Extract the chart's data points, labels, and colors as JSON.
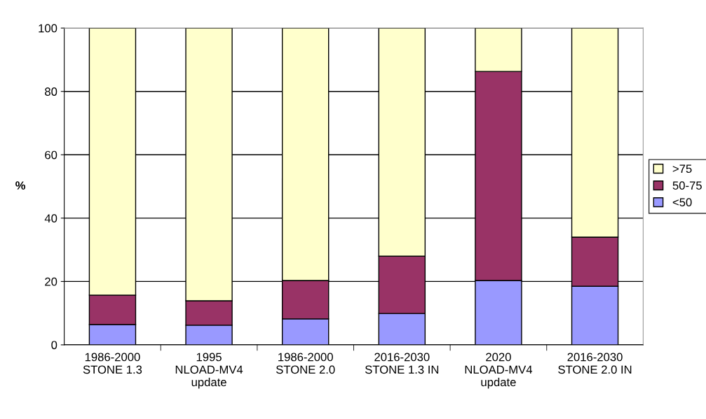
{
  "chart_data": {
    "type": "bar",
    "stacked": true,
    "ylabel": "%",
    "categories": [
      "1986-2000\nSTONE 1.3",
      "1995\nNLOAD-MV4\nupdate",
      "1986-2000\nSTONE 2.0",
      "2016-2030\nSTONE 1.3 IN",
      "2020\nNLOAD-MV4\nupdate",
      "2016-2030\nSTONE 2.0 IN"
    ],
    "series": [
      {
        "name": "<50",
        "color": "#9999ff",
        "values": [
          6.4,
          6.2,
          8.2,
          9.9,
          20.3,
          18.5
        ]
      },
      {
        "name": "50-75",
        "color": "#993366",
        "values": [
          9.3,
          7.7,
          12.1,
          18.1,
          66.0,
          15.5
        ]
      },
      {
        "name": ">75",
        "color": "#ffffcc",
        "values": [
          84.3,
          86.1,
          79.7,
          72.0,
          13.7,
          66.0
        ]
      }
    ],
    "ylim": [
      0,
      100
    ],
    "yticks": [
      0,
      20,
      40,
      60,
      80,
      100
    ],
    "grid": "y",
    "legend": "right"
  }
}
